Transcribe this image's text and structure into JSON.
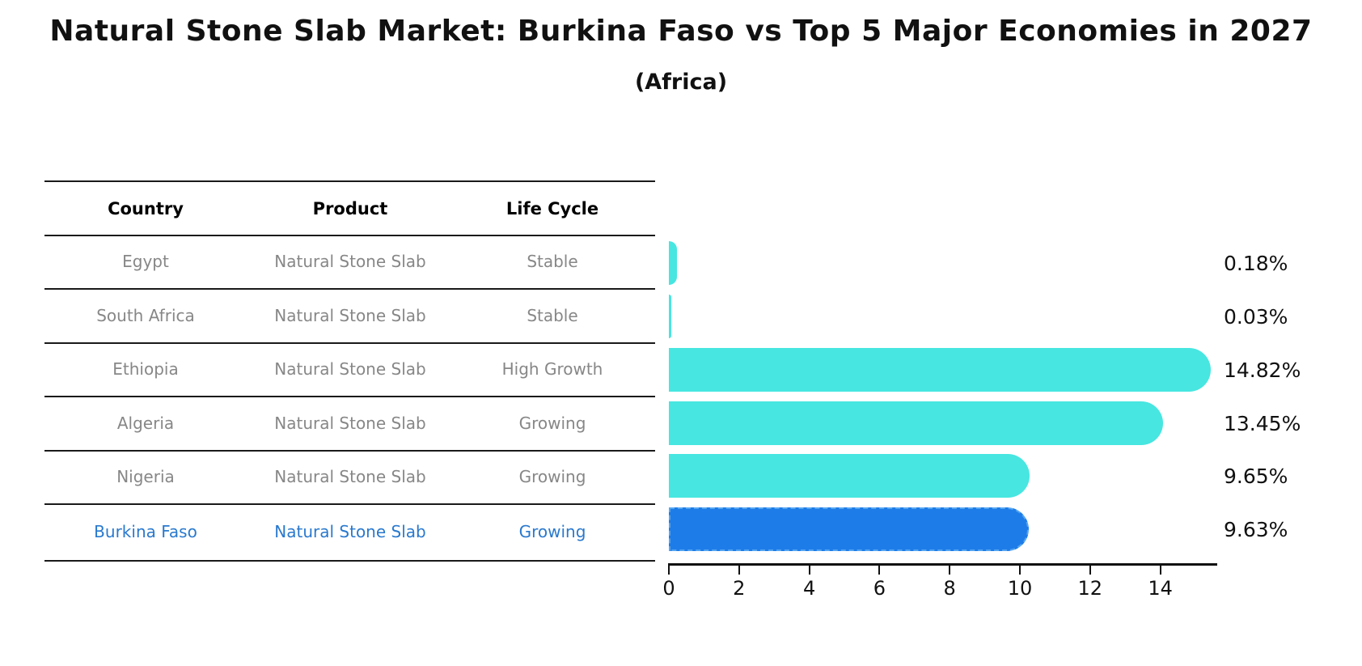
{
  "title": "Natural Stone Slab Market: Burkina Faso vs Top 5 Major Economies in 2027",
  "subtitle": "(Africa)",
  "table": {
    "headers": [
      "Country",
      "Product",
      "Life Cycle"
    ],
    "rows": [
      {
        "country": "Egypt",
        "product": "Natural Stone Slab",
        "life_cycle": "Stable"
      },
      {
        "country": "South Africa",
        "product": "Natural Stone Slab",
        "life_cycle": "Stable"
      },
      {
        "country": "Ethiopia",
        "product": "Natural Stone Slab",
        "life_cycle": "High Growth"
      },
      {
        "country": "Algeria",
        "product": "Natural Stone Slab",
        "life_cycle": "Growing"
      },
      {
        "country": "Nigeria",
        "product": "Natural Stone Slab",
        "life_cycle": "Growing"
      },
      {
        "country": "Burkina Faso",
        "product": "Natural Stone Slab",
        "life_cycle": "Growing"
      }
    ]
  },
  "chart_data": {
    "type": "bar",
    "orientation": "horizontal",
    "title": "Natural Stone Slab Market: Burkina Faso vs Top 5 Major Economies in 2027",
    "subtitle": "(Africa)",
    "categories": [
      "Egypt",
      "South Africa",
      "Ethiopia",
      "Algeria",
      "Nigeria",
      "Burkina Faso"
    ],
    "values": [
      0.18,
      0.03,
      14.82,
      13.45,
      9.65,
      9.63
    ],
    "value_labels": [
      "0.18%",
      "0.03%",
      "14.82%",
      "13.45%",
      "9.65%",
      "9.63%"
    ],
    "unit": "%",
    "xlim": [
      0,
      15.6
    ],
    "xticks": [
      0,
      2,
      4,
      6,
      8,
      10,
      12,
      14
    ],
    "grid": false,
    "legend": false,
    "highlight_index": 5,
    "bar_color": "#47e6e0",
    "highlight_color": "#1e7ce8",
    "highlight_border_color": "#55a6f0",
    "highlight_text_color": "#2979ce",
    "row_text_color": "#878787"
  }
}
